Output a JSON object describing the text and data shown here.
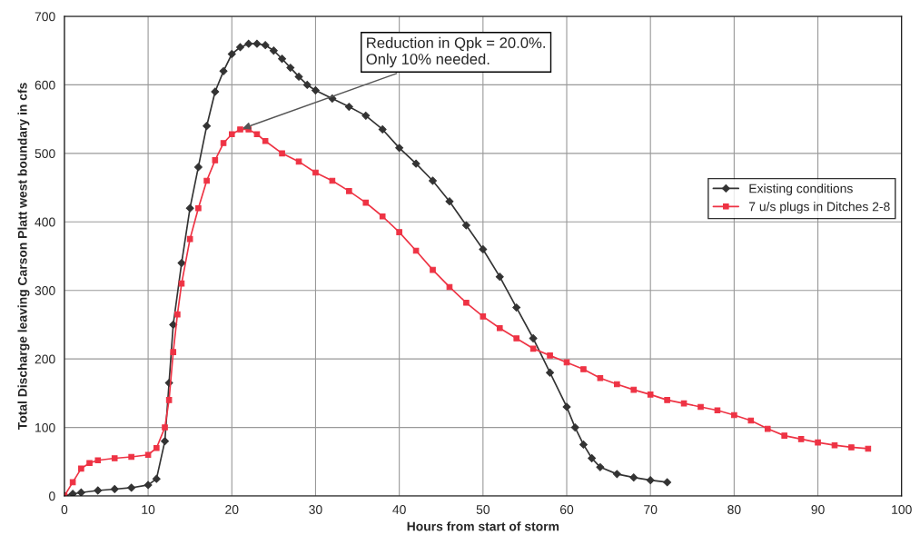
{
  "chart_data": {
    "type": "line",
    "xlabel": "Hours from start of storm",
    "ylabel": "Total Discharge leaving Carson Platt west boundary in cfs",
    "xlim": [
      0,
      100
    ],
    "xticks": [
      0,
      10,
      20,
      30,
      40,
      50,
      60,
      70,
      80,
      90,
      100
    ],
    "ylim": [
      0,
      700
    ],
    "yticks": [
      0,
      100,
      200,
      300,
      400,
      500,
      600,
      700
    ],
    "grid": true,
    "legend": "right",
    "line_style": "solid",
    "annotations": [
      {
        "text": "Reduction in Qpk = 20.0%.\nOnly 10% needed.",
        "x": 21,
        "y": 535
      }
    ],
    "series": [
      {
        "name": "Existing conditions",
        "color": "#333333",
        "marker": "diamond",
        "x": [
          0,
          1,
          2,
          4,
          6,
          8,
          10,
          11,
          12,
          12.5,
          13,
          14,
          15,
          16,
          17,
          18,
          19,
          20,
          21,
          22,
          23,
          24,
          25,
          26,
          27,
          28,
          29,
          30,
          32,
          34,
          36,
          38,
          40,
          42,
          44,
          46,
          48,
          50,
          52,
          54,
          56,
          58,
          60,
          61,
          62,
          63,
          64,
          66,
          68,
          70,
          72
        ],
        "values": [
          0,
          3,
          5,
          8,
          10,
          12,
          16,
          25,
          80,
          165,
          250,
          340,
          420,
          480,
          540,
          590,
          620,
          645,
          655,
          660,
          660,
          658,
          650,
          638,
          625,
          612,
          600,
          592,
          580,
          568,
          555,
          535,
          508,
          485,
          460,
          430,
          395,
          360,
          320,
          275,
          230,
          180,
          130,
          100,
          75,
          55,
          42,
          32,
          27,
          23,
          20
        ]
      },
      {
        "name": "7 u/s plugs in Ditches 2-8",
        "color": "#ee3344",
        "marker": "square",
        "x": [
          0,
          1,
          2,
          3,
          4,
          6,
          8,
          10,
          11,
          12,
          12.5,
          13,
          13.5,
          14,
          15,
          16,
          17,
          18,
          19,
          20,
          21,
          22,
          23,
          24,
          26,
          28,
          30,
          32,
          34,
          36,
          38,
          40,
          42,
          44,
          46,
          48,
          50,
          52,
          54,
          56,
          58,
          60,
          62,
          64,
          66,
          68,
          70,
          72,
          74,
          76,
          78,
          80,
          82,
          84,
          86,
          88,
          90,
          92,
          94,
          96
        ],
        "values": [
          0,
          20,
          40,
          48,
          52,
          55,
          57,
          60,
          70,
          100,
          140,
          210,
          265,
          310,
          375,
          420,
          460,
          490,
          515,
          528,
          535,
          535,
          528,
          518,
          500,
          488,
          472,
          460,
          445,
          428,
          408,
          385,
          358,
          330,
          305,
          282,
          262,
          245,
          230,
          215,
          205,
          195,
          185,
          172,
          163,
          155,
          148,
          140,
          135,
          130,
          125,
          118,
          110,
          98,
          88,
          83,
          78,
          74,
          71,
          69
        ]
      }
    ]
  }
}
